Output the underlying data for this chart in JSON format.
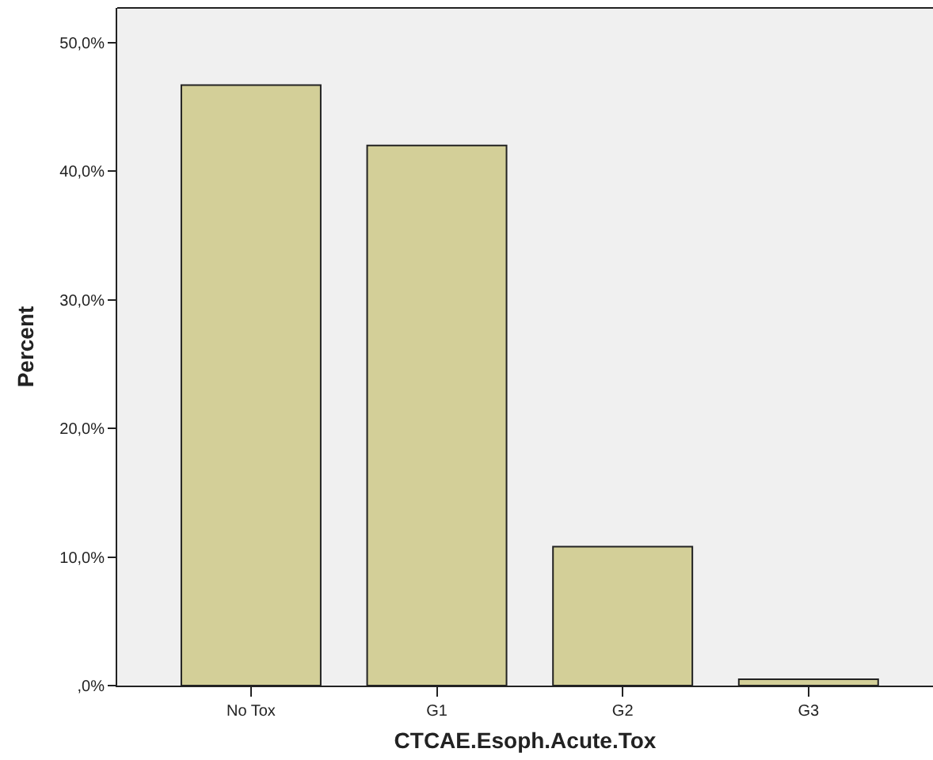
{
  "chart_data": {
    "type": "bar",
    "xlabel": "CTCAE.Esoph.Acute.Tox",
    "ylabel": "Percent",
    "categories": [
      "No Tox",
      "G1",
      "G2",
      "G3"
    ],
    "values": [
      46.7,
      42.0,
      10.8,
      0.5
    ],
    "color": "#d3cf98",
    "ylim": [
      0,
      52.7
    ],
    "yticks": [
      {
        "value": 0,
        "label": ",0%"
      },
      {
        "value": 10,
        "label": "10,0%"
      },
      {
        "value": 20,
        "label": "20,0%"
      },
      {
        "value": 30,
        "label": "30,0%"
      },
      {
        "value": 40,
        "label": "40,0%"
      },
      {
        "value": 50,
        "label": "50,0%"
      }
    ],
    "grid": false
  }
}
